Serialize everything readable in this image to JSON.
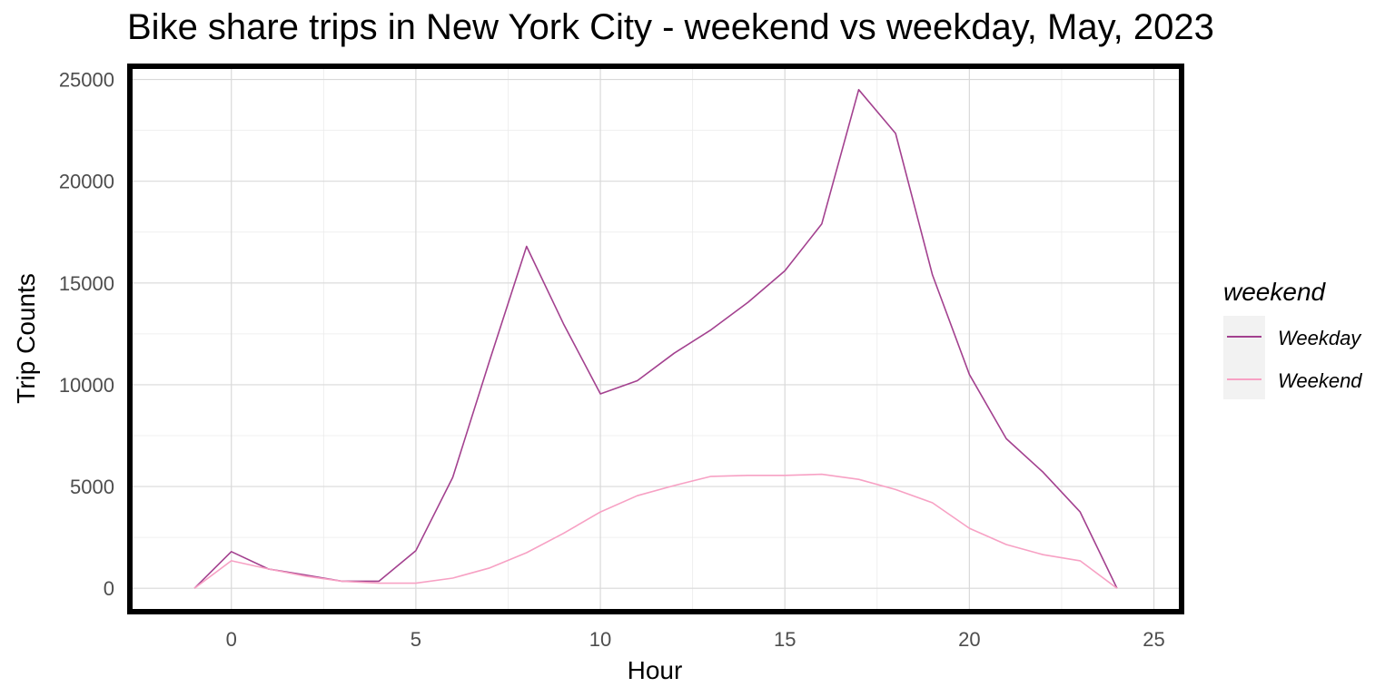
{
  "chart_data": {
    "type": "line",
    "title": "Bike share trips in New York City - weekend vs weekday, May, 2023",
    "xlabel": "Hour",
    "ylabel": "Trip Counts",
    "xlim": [
      -2.75,
      25.75
    ],
    "ylim": [
      -1150,
      25650
    ],
    "x_ticks": [
      0,
      5,
      10,
      15,
      20,
      25
    ],
    "y_ticks": [
      0,
      5000,
      10000,
      15000,
      20000,
      25000
    ],
    "grid": true,
    "legend": {
      "title": "weekend",
      "placement": "right"
    },
    "x": [
      -1,
      0,
      1,
      2,
      3,
      4,
      5,
      6,
      7,
      8,
      9,
      10,
      11,
      12,
      13,
      14,
      15,
      16,
      17,
      18,
      19,
      20,
      21,
      22,
      23,
      24
    ],
    "series": [
      {
        "name": "Weekday",
        "color": "#a3418f",
        "values": [
          0,
          1800,
          950,
          650,
          350,
          350,
          1850,
          5450,
          11200,
          16800,
          13000,
          9550,
          10200,
          11550,
          12700,
          14050,
          15600,
          17900,
          24500,
          22350,
          15400,
          10500,
          7350,
          5700,
          3750,
          0
        ]
      },
      {
        "name": "Weekend",
        "color": "#f7a1c4",
        "values": [
          0,
          1350,
          950,
          600,
          350,
          250,
          250,
          500,
          1000,
          1750,
          2700,
          3750,
          4550,
          5050,
          5500,
          5550,
          5550,
          5600,
          5350,
          4850,
          4200,
          2950,
          2150,
          1650,
          1350,
          0
        ]
      }
    ]
  }
}
